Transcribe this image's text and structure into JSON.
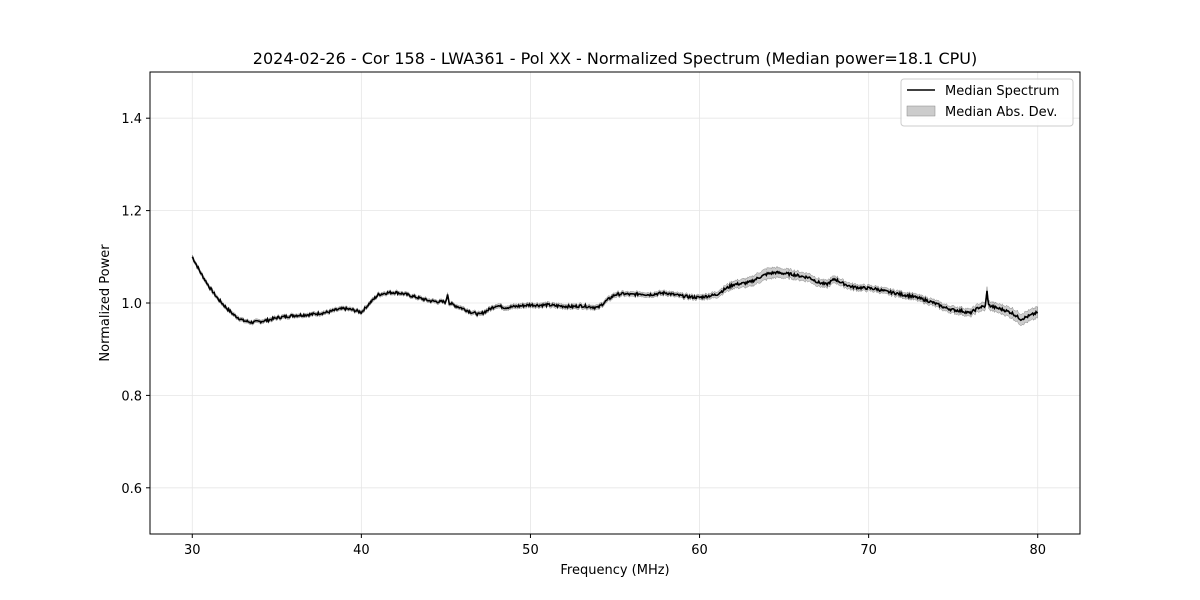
{
  "chart_data": {
    "type": "line",
    "title": "2024-02-26 - Cor 158 - LWA361 - Pol XX - Normalized Spectrum (Median power=18.1 CPU)",
    "xlabel": "Frequency (MHz)",
    "ylabel": "Normalized Power",
    "xlim": [
      27.5,
      82.5
    ],
    "ylim": [
      0.5,
      1.5
    ],
    "xticks": [
      30,
      40,
      50,
      60,
      70,
      80
    ],
    "yticks": [
      0.6,
      0.8,
      1.0,
      1.2,
      1.4
    ],
    "xtick_labels": [
      "30",
      "40",
      "50",
      "60",
      "70",
      "80"
    ],
    "ytick_labels": [
      "0.6",
      "0.8",
      "1.0",
      "1.2",
      "1.4"
    ],
    "grid": true,
    "legend_position": "top-right",
    "colors": {
      "line": "#000000",
      "band": "#999999"
    },
    "series": [
      {
        "name": "Median Spectrum",
        "x": [
          30,
          30.5,
          31,
          31.5,
          32,
          32.5,
          33,
          33.5,
          34,
          34.5,
          35,
          36,
          37,
          38,
          38.5,
          39,
          39.5,
          40,
          40.5,
          41,
          41.5,
          42,
          42.5,
          43,
          43.5,
          44,
          44.5,
          45,
          45.1,
          45.2,
          45.5,
          46,
          46.5,
          47,
          47.5,
          48,
          48.5,
          49,
          49.5,
          50,
          50.5,
          51,
          51.5,
          52,
          52.5,
          53,
          53.5,
          54,
          54.5,
          55,
          55.5,
          56,
          56.5,
          57,
          57.5,
          58,
          58.5,
          59,
          59.5,
          60,
          60.5,
          61,
          61.5,
          62,
          62.5,
          63,
          63.5,
          64,
          64.5,
          65,
          65.5,
          66,
          66.5,
          67,
          67.5,
          68,
          68.5,
          69,
          69.5,
          70,
          70.5,
          71,
          71.5,
          72,
          72.5,
          73,
          73.5,
          74,
          74.5,
          75,
          75.5,
          76,
          76.5,
          76.9,
          77,
          77.1,
          77.5,
          78,
          78.5,
          79,
          79.5,
          80
        ],
        "y": [
          1.1,
          1.065,
          1.035,
          1.01,
          0.99,
          0.973,
          0.962,
          0.958,
          0.96,
          0.963,
          0.968,
          0.973,
          0.975,
          0.98,
          0.985,
          0.988,
          0.985,
          0.98,
          1.0,
          1.018,
          1.022,
          1.023,
          1.02,
          1.015,
          1.01,
          1.005,
          1.003,
          1.002,
          1.02,
          1.0,
          0.995,
          0.988,
          0.98,
          0.975,
          0.985,
          0.995,
          0.99,
          0.992,
          0.994,
          0.996,
          0.995,
          0.996,
          0.994,
          0.993,
          0.992,
          0.994,
          0.992,
          0.99,
          1.005,
          1.018,
          1.02,
          1.018,
          1.02,
          1.018,
          1.02,
          1.022,
          1.018,
          1.015,
          1.013,
          1.012,
          1.015,
          1.018,
          1.03,
          1.04,
          1.042,
          1.045,
          1.055,
          1.063,
          1.066,
          1.064,
          1.062,
          1.058,
          1.055,
          1.045,
          1.04,
          1.052,
          1.042,
          1.035,
          1.033,
          1.032,
          1.03,
          1.025,
          1.022,
          1.018,
          1.015,
          1.01,
          1.005,
          0.998,
          0.99,
          0.985,
          0.983,
          0.978,
          0.99,
          0.993,
          1.025,
          0.995,
          0.99,
          0.985,
          0.978,
          0.965,
          0.972,
          0.98
        ]
      }
    ],
    "band": {
      "name": "Median Abs. Dev.",
      "x": [
        30,
        35,
        40,
        45,
        50,
        55,
        60,
        62,
        63,
        64,
        65,
        66,
        70,
        74,
        76,
        77,
        78,
        79,
        80
      ],
      "halfwidth": [
        0.004,
        0.004,
        0.004,
        0.004,
        0.005,
        0.005,
        0.005,
        0.008,
        0.01,
        0.012,
        0.01,
        0.009,
        0.006,
        0.007,
        0.008,
        0.009,
        0.01,
        0.012,
        0.012
      ]
    }
  }
}
